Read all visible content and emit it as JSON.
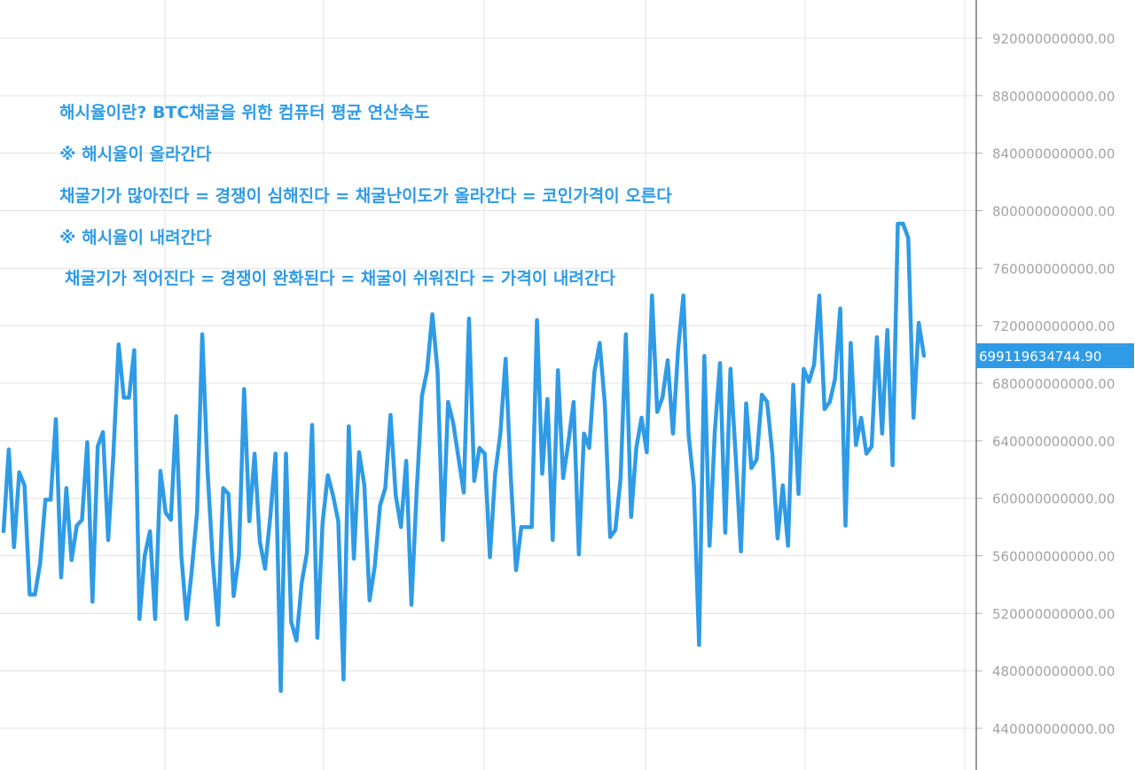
{
  "annotations": [
    "해시율이란? BTC채굴을 위한 컴퓨터 평균 연산속도",
    "※ 해시율이 올라간다",
    "채굴기가 많아진다 = 경쟁이 심해진다 = 채굴난이도가 올라간다 = 코인가격이 오른다",
    "※ 해시율이 내려간다",
    "채굴기가 적어진다 = 경쟁이 완화된다 = 채굴이 쉬워진다 = 가격이 내려간다"
  ],
  "colors": {
    "line": "#2f9be6",
    "grid": "#e3e3e3",
    "axis_text": "#a3a3a3"
  },
  "chart_data": {
    "type": "line",
    "title": "",
    "xlabel": "",
    "ylabel": "",
    "grid": true,
    "y_axis_position": "right",
    "ylim": [
      415000000000,
      950000000000
    ],
    "y_ticks": [
      440000000000,
      480000000000,
      520000000000,
      560000000000,
      600000000000,
      640000000000,
      680000000000,
      720000000000,
      760000000000,
      800000000000,
      840000000000,
      880000000000,
      920000000000
    ],
    "y_tick_labels": [
      "440000000000.00",
      "480000000000.00",
      "520000000000.00",
      "560000000000.00",
      "600000000000.00",
      "640000000000.00",
      "680000000000.00",
      "720000000000.00",
      "760000000000.00",
      "800000000000.00",
      "840000000000.00",
      "880000000000.00",
      "920000000000.00"
    ],
    "last_value_label": "699119634744.90",
    "last_value": 699119634744.9,
    "values": [
      577000000000,
      634000000000,
      566000000000,
      618000000000,
      609000000000,
      533000000000,
      533000000000,
      555000000000,
      599000000000,
      599000000000,
      655000000000,
      545000000000,
      607000000000,
      557000000000,
      581000000000,
      585000000000,
      639000000000,
      528000000000,
      636000000000,
      646000000000,
      571000000000,
      631000000000,
      707000000000,
      670000000000,
      670000000000,
      703000000000,
      516000000000,
      560000000000,
      577000000000,
      516000000000,
      619000000000,
      590000000000,
      585000000000,
      657000000000,
      560000000000,
      516000000000,
      550000000000,
      590000000000,
      714000000000,
      620000000000,
      557000000000,
      512000000000,
      607000000000,
      603000000000,
      532000000000,
      560000000000,
      676000000000,
      584000000000,
      631000000000,
      570000000000,
      551000000000,
      587000000000,
      631000000000,
      466000000000,
      631000000000,
      514000000000,
      501000000000,
      541000000000,
      562000000000,
      651000000000,
      503000000000,
      583000000000,
      616000000000,
      602000000000,
      584000000000,
      474000000000,
      650000000000,
      558000000000,
      632000000000,
      609000000000,
      529000000000,
      553000000000,
      595000000000,
      607000000000,
      658000000000,
      602000000000,
      580000000000,
      626000000000,
      526000000000,
      605000000000,
      671000000000,
      689000000000,
      728000000000,
      688000000000,
      571000000000,
      667000000000,
      652000000000,
      628000000000,
      604000000000,
      725000000000,
      612000000000,
      635000000000,
      631000000000,
      559000000000,
      617000000000,
      645000000000,
      697000000000,
      614000000000,
      550000000000,
      580000000000,
      580000000000,
      580000000000,
      724000000000,
      617000000000,
      669000000000,
      571000000000,
      689000000000,
      614000000000,
      639000000000,
      667000000000,
      561000000000,
      645000000000,
      635000000000,
      688000000000,
      708000000000,
      665000000000,
      573000000000,
      578000000000,
      614000000000,
      714000000000,
      587000000000,
      635000000000,
      656000000000,
      632000000000,
      741000000000,
      660000000000,
      670000000000,
      696000000000,
      645000000000,
      704000000000,
      741000000000,
      644000000000,
      609000000000,
      498000000000,
      699000000000,
      567000000000,
      646000000000,
      694000000000,
      576000000000,
      690000000000,
      629000000000,
      563000000000,
      666000000000,
      621000000000,
      627000000000,
      672000000000,
      667000000000,
      631000000000,
      572000000000,
      609000000000,
      567000000000,
      679000000000,
      603000000000,
      690000000000,
      681000000000,
      693000000000,
      741000000000,
      662000000000,
      667000000000,
      683000000000,
      732000000000,
      581000000000,
      708000000000,
      637000000000,
      656000000000,
      631000000000,
      636000000000,
      712000000000,
      645000000000,
      717000000000,
      623000000000,
      791000000000,
      791000000000,
      781000000000,
      656000000000,
      722000000000,
      699119634744.9
    ]
  }
}
